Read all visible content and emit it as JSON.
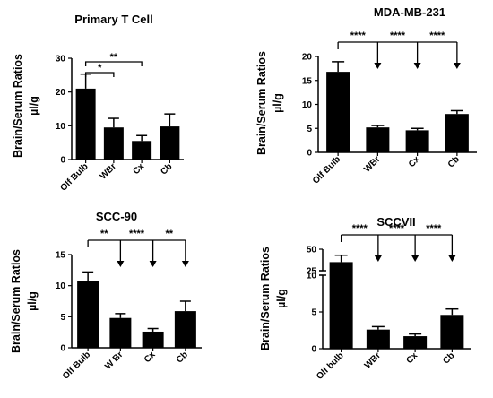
{
  "figure": {
    "background": "#ffffff",
    "bar_color": "#000000"
  },
  "chart_data": [
    {
      "type": "bar",
      "title": "Primary T Cell",
      "ylabel": "Brain/Serum Ratios",
      "yunit": "µl/g",
      "categories": [
        "Olf Bulb",
        "WBr",
        "Cx",
        "Cb"
      ],
      "values": [
        21.0,
        9.5,
        5.5,
        9.8
      ],
      "errors": [
        4.3,
        2.7,
        1.6,
        3.7
      ],
      "ylim": [
        0,
        30
      ],
      "yticks": [
        "0",
        "10",
        "20",
        "30"
      ],
      "annotation_style": "bracket",
      "significance": [
        {
          "from": "Olf Bulb",
          "to": "WBr",
          "label": "*"
        },
        {
          "from": "Olf Bulb",
          "to": "Cx",
          "label": "**"
        }
      ]
    },
    {
      "type": "bar",
      "title": "MDA-MB-231",
      "ylabel": "Brain/Serum Ratios",
      "yunit": "µl/g",
      "categories": [
        "Olf Bulb",
        "WBr",
        "Cx",
        "Cb"
      ],
      "values": [
        16.8,
        5.2,
        4.6,
        8.0
      ],
      "errors": [
        2.1,
        0.4,
        0.4,
        0.7
      ],
      "ylim": [
        0,
        20
      ],
      "yticks": [
        "0",
        "5",
        "10",
        "15",
        "20"
      ],
      "annotation_style": "arrows",
      "significance": [
        {
          "from": "Olf Bulb",
          "to": "WBr",
          "label": "****"
        },
        {
          "from": "Olf Bulb",
          "to": "Cx",
          "label": "****"
        },
        {
          "from": "Olf Bulb",
          "to": "Cb",
          "label": "****"
        }
      ]
    },
    {
      "type": "bar",
      "title": "SCC-90",
      "ylabel": "Brain/Serum Ratios",
      "yunit": "µl/g",
      "categories": [
        "Olf Bulb",
        "W Br",
        "Cx",
        "Cb"
      ],
      "values": [
        10.7,
        4.8,
        2.6,
        5.9
      ],
      "errors": [
        1.5,
        0.7,
        0.5,
        1.6
      ],
      "ylim": [
        0,
        15
      ],
      "yticks": [
        "0",
        "5",
        "10",
        "15"
      ],
      "annotation_style": "arrows",
      "significance": [
        {
          "from": "Olf Bulb",
          "to": "W Br",
          "label": "**"
        },
        {
          "from": "Olf Bulb",
          "to": "Cx",
          "label": "****"
        },
        {
          "from": "Olf Bulb",
          "to": "Cb",
          "label": "**"
        }
      ]
    },
    {
      "type": "bar",
      "title": "SCCVII",
      "ylabel": "Brain/Serum Ratios",
      "yunit": "µl/g",
      "categories": [
        "Olf bulb",
        "WBr",
        "Cx",
        "Cb"
      ],
      "values": [
        35.0,
        2.6,
        1.7,
        4.6
      ],
      "errors": [
        8.0,
        0.4,
        0.3,
        0.8
      ],
      "ylim": [
        0,
        50
      ],
      "axis_break": [
        10,
        25
      ],
      "yticks": [
        "0",
        "5",
        "10",
        "25",
        "50"
      ],
      "annotation_style": "arrows",
      "significance": [
        {
          "from": "Olf bulb",
          "to": "WBr",
          "label": "****"
        },
        {
          "from": "Olf bulb",
          "to": "Cx",
          "label": "****"
        },
        {
          "from": "Olf bulb",
          "to": "Cb",
          "label": "****"
        }
      ]
    }
  ]
}
